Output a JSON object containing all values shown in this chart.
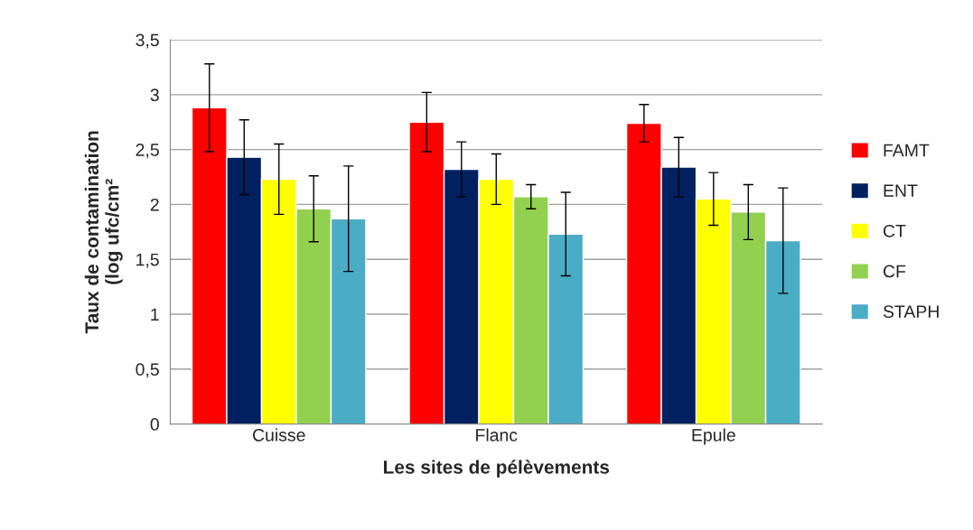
{
  "chart_data": {
    "type": "bar",
    "xlabel": "Les sites de pélèvements",
    "ylabel": "Taux de contamination\n(log ufc/cm²",
    "categories": [
      "Cuisse",
      "Flanc",
      "Epule"
    ],
    "series": [
      {
        "name": "FAMT",
        "color": "#ff0000",
        "values": [
          2.88,
          2.75,
          2.74
        ],
        "errors": [
          0.4,
          0.27,
          0.17
        ]
      },
      {
        "name": "ENT",
        "color": "#002060",
        "values": [
          2.43,
          2.32,
          2.34
        ],
        "errors": [
          0.34,
          0.25,
          0.27
        ]
      },
      {
        "name": "CT",
        "color": "#ffff00",
        "values": [
          2.23,
          2.23,
          2.05
        ],
        "errors": [
          0.32,
          0.23,
          0.24
        ]
      },
      {
        "name": "CF",
        "color": "#92d050",
        "values": [
          1.96,
          2.07,
          1.93
        ],
        "errors": [
          0.3,
          0.11,
          0.25
        ]
      },
      {
        "name": "STAPH",
        "color": "#4bacc6",
        "values": [
          1.87,
          1.73,
          1.67
        ],
        "errors": [
          0.48,
          0.38,
          0.48
        ]
      }
    ],
    "ylim": [
      0,
      3.5
    ],
    "yticks": [
      0,
      {
        "value": 0.5,
        "label": "0,5"
      },
      1,
      {
        "value": 1.5,
        "label": "1,5"
      },
      2,
      {
        "value": 2.5,
        "label": "2,5"
      },
      3,
      {
        "value": 3.5,
        "label": "3,5"
      }
    ],
    "grid": "y",
    "legend": "right"
  }
}
